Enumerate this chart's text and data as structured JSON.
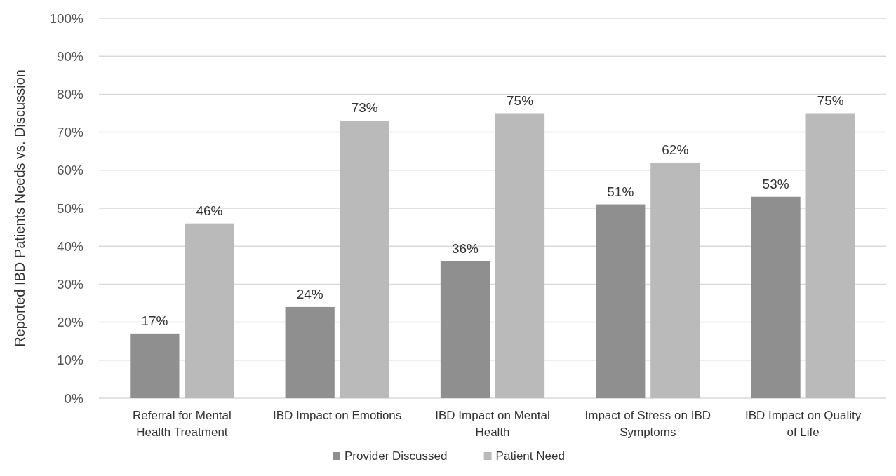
{
  "chart_data": {
    "type": "bar",
    "ylabel": "Reported IBD Patients Needs vs. Discussion",
    "categories": [
      "Referral for Mental Health Treatment",
      "IBD Impact on Emotions",
      "IBD Impact on Mental Health",
      "Impact of Stress on IBD Symptoms",
      "IBD Impact on Quality of Life"
    ],
    "series": [
      {
        "name": "Provider Discussed",
        "color": "#8f8f8f",
        "values": [
          17,
          24,
          36,
          51,
          53
        ],
        "value_labels": [
          "17%",
          "24%",
          "36%",
          "51%",
          "53%"
        ]
      },
      {
        "name": "Patient Need",
        "color": "#bababa",
        "values": [
          46,
          73,
          75,
          62,
          75
        ],
        "value_labels": [
          "46%",
          "73%",
          "75%",
          "62%",
          "75%"
        ]
      }
    ],
    "ylim": [
      0,
      100
    ],
    "yticks": [
      {
        "value": 0,
        "label": "0%"
      },
      {
        "value": 10,
        "label": "10%"
      },
      {
        "value": 20,
        "label": "20%"
      },
      {
        "value": 30,
        "label": "30%"
      },
      {
        "value": 40,
        "label": "40%"
      },
      {
        "value": 50,
        "label": "50%"
      },
      {
        "value": 60,
        "label": "60%"
      },
      {
        "value": 70,
        "label": "70%"
      },
      {
        "value": 80,
        "label": "80%"
      },
      {
        "value": 90,
        "label": "90%"
      },
      {
        "value": 100,
        "label": "100%"
      }
    ],
    "grid": "y",
    "legend": "bottom"
  }
}
